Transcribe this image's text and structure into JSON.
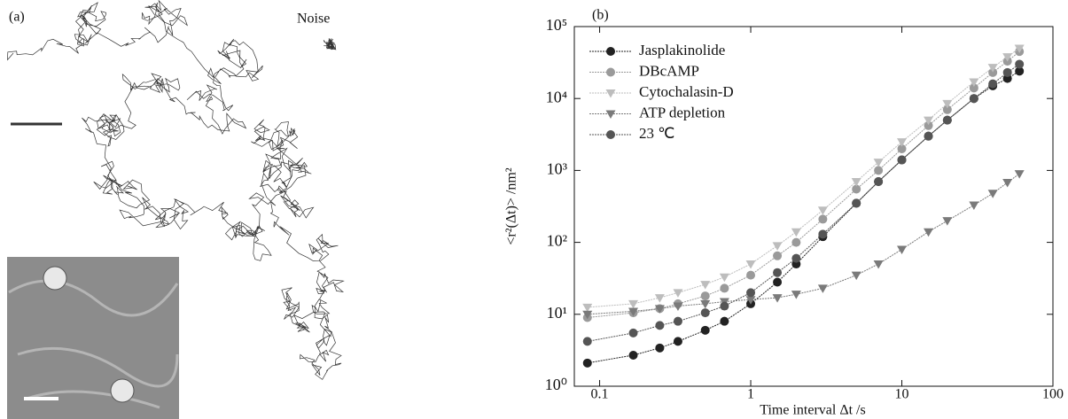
{
  "image_panel": {
    "label": "(a)",
    "annotation": "Noise"
  },
  "chart_data": {
    "type": "line",
    "label": "(b)",
    "x_label": "Time interval Δt /s",
    "y_label": "<r²(Δt)> /nm²",
    "log_x": true,
    "log_y": true,
    "legend": "upper left",
    "xlim": [
      0.068,
      100
    ],
    "ylim": [
      1,
      100000
    ],
    "xticks": [
      0.1,
      1,
      10,
      100
    ],
    "yticks": [
      {
        "value": 1,
        "label": "10⁰"
      },
      {
        "value": 10,
        "label": "10¹"
      },
      {
        "value": 100,
        "label": "10²"
      },
      {
        "value": 1000,
        "label": "10³"
      },
      {
        "value": 10000,
        "label": "10⁴"
      },
      {
        "value": 100000,
        "label": "10⁵"
      }
    ],
    "x": [
      0.083,
      0.167,
      0.25,
      0.33,
      0.5,
      0.67,
      1,
      1.5,
      2,
      3,
      5,
      7,
      10,
      15,
      20,
      30,
      40,
      50,
      60
    ],
    "series": [
      {
        "name": "Jasplakinolide",
        "color": "#222222",
        "marker": "circle",
        "values": [
          2.1,
          2.7,
          3.4,
          4.2,
          6,
          8,
          14,
          28,
          50,
          120,
          350,
          700,
          1400,
          3000,
          5000,
          10000,
          15000,
          19000,
          24000
        ]
      },
      {
        "name": "DBcAMP",
        "color": "#9a9a9a",
        "marker": "circle",
        "values": [
          9,
          10.5,
          12,
          14,
          18,
          23,
          35,
          65,
          100,
          210,
          550,
          1000,
          2000,
          4200,
          7000,
          14000,
          23000,
          33000,
          45000
        ]
      },
      {
        "name": "Cytochalasin-D",
        "color": "#bdbdbd",
        "marker": "triangle-down",
        "values": [
          12.5,
          14,
          17,
          20,
          26,
          33,
          50,
          90,
          140,
          280,
          700,
          1300,
          2500,
          5000,
          8500,
          17000,
          27000,
          38000,
          50000
        ]
      },
      {
        "name": "ATP depletion",
        "color": "#7a7a7a",
        "marker": "triangle-down",
        "values": [
          10,
          11,
          12,
          13,
          14,
          15,
          16,
          17,
          19,
          23,
          35,
          50,
          80,
          140,
          200,
          330,
          480,
          680,
          900
        ]
      },
      {
        "name": "23 ℃",
        "color": "#555555",
        "marker": "circle",
        "values": [
          4.2,
          5.5,
          7,
          8,
          10.5,
          13,
          20,
          38,
          60,
          130,
          350,
          700,
          1400,
          3000,
          5000,
          10000,
          16000,
          23000,
          30000
        ]
      }
    ]
  }
}
